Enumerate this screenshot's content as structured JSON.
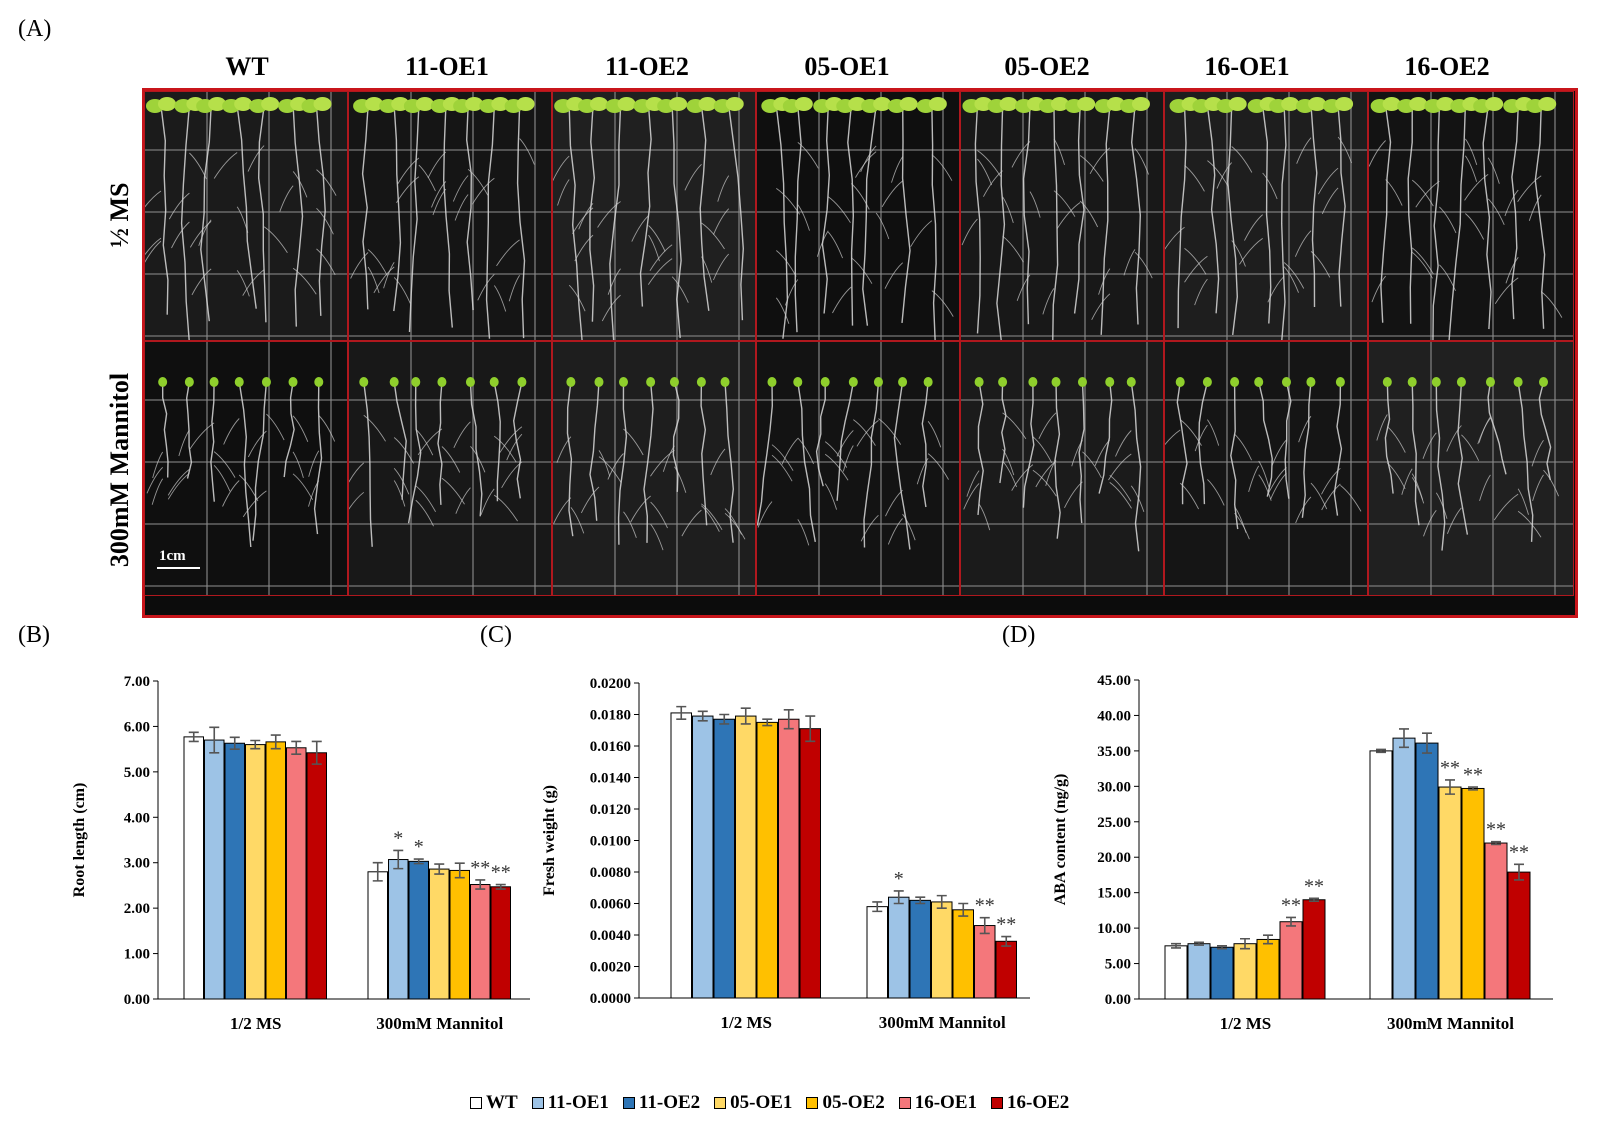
{
  "panel_labels": {
    "a": "(A)",
    "b": "(B)",
    "c": "(C)",
    "d": "(D)"
  },
  "photo": {
    "columns": [
      "WT",
      "11-OE1",
      "11-OE2",
      "05-OE1",
      "05-OE2",
      "16-OE1",
      "16-OE2"
    ],
    "rows": [
      "½ MS",
      "300mM Mannitol"
    ],
    "scale_bar": "1cm"
  },
  "legend": [
    {
      "name": "WT",
      "color": "#ffffff"
    },
    {
      "name": "11-OE1",
      "color": "#9dc3e6"
    },
    {
      "name": "11-OE2",
      "color": "#2e75b6"
    },
    {
      "name": "05-OE1",
      "color": "#ffd966"
    },
    {
      "name": "05-OE2",
      "color": "#ffc000"
    },
    {
      "name": "16-OE1",
      "color": "#f4777b"
    },
    {
      "name": "16-OE2",
      "color": "#c00000"
    }
  ],
  "chart_data": [
    {
      "id": "root-length",
      "type": "bar",
      "ylabel": "Root length (cm)",
      "categories": [
        "1/2 MS",
        "300mM Mannitol"
      ],
      "ylim": [
        0,
        7
      ],
      "yticks": [
        "0.00",
        "1.00",
        "2.00",
        "3.00",
        "4.00",
        "5.00",
        "6.00",
        "7.00"
      ],
      "series": [
        {
          "name": "WT",
          "values": [
            5.77,
            2.8
          ],
          "errors": [
            0.1,
            0.2
          ],
          "marks": [
            "",
            ""
          ]
        },
        {
          "name": "11-OE1",
          "values": [
            5.7,
            3.07
          ],
          "errors": [
            0.28,
            0.2
          ],
          "marks": [
            "",
            "*"
          ]
        },
        {
          "name": "11-OE2",
          "values": [
            5.63,
            3.03
          ],
          "errors": [
            0.13,
            0.05
          ],
          "marks": [
            "",
            "*"
          ]
        },
        {
          "name": "05-OE1",
          "values": [
            5.6,
            2.86
          ],
          "errors": [
            0.09,
            0.11
          ],
          "marks": [
            "",
            ""
          ]
        },
        {
          "name": "05-OE2",
          "values": [
            5.66,
            2.83
          ],
          "errors": [
            0.15,
            0.16
          ],
          "marks": [
            "",
            ""
          ]
        },
        {
          "name": "16-OE1",
          "values": [
            5.53,
            2.52
          ],
          "errors": [
            0.14,
            0.1
          ],
          "marks": [
            "",
            "**"
          ]
        },
        {
          "name": "16-OE2",
          "values": [
            5.42,
            2.47
          ],
          "errors": [
            0.25,
            0.05
          ],
          "marks": [
            "",
            "**"
          ]
        }
      ]
    },
    {
      "id": "fresh-weight",
      "type": "bar",
      "ylabel": "Fresh weight (g)",
      "categories": [
        "1/2 MS",
        "300mM Mannitol"
      ],
      "ylim": [
        0,
        0.02
      ],
      "yticks": [
        "0.0000",
        "0.0020",
        "0.0040",
        "0.0060",
        "0.0080",
        "0.0100",
        "0.0120",
        "0.0140",
        "0.0160",
        "0.0180",
        "0.0200"
      ],
      "series": [
        {
          "name": "WT",
          "values": [
            0.0181,
            0.0058
          ],
          "errors": [
            0.0004,
            0.0003
          ],
          "marks": [
            "",
            ""
          ]
        },
        {
          "name": "11-OE1",
          "values": [
            0.0179,
            0.0064
          ],
          "errors": [
            0.0003,
            0.0004
          ],
          "marks": [
            "",
            "*"
          ]
        },
        {
          "name": "11-OE2",
          "values": [
            0.0177,
            0.0062
          ],
          "errors": [
            0.0003,
            0.0002
          ],
          "marks": [
            "",
            ""
          ]
        },
        {
          "name": "05-OE1",
          "values": [
            0.0179,
            0.0061
          ],
          "errors": [
            0.0005,
            0.0004
          ],
          "marks": [
            "",
            ""
          ]
        },
        {
          "name": "05-OE2",
          "values": [
            0.0175,
            0.0056
          ],
          "errors": [
            0.0002,
            0.0004
          ],
          "marks": [
            "",
            ""
          ]
        },
        {
          "name": "16-OE1",
          "values": [
            0.0177,
            0.0046
          ],
          "errors": [
            0.0006,
            0.0005
          ],
          "marks": [
            "",
            "**"
          ]
        },
        {
          "name": "16-OE2",
          "values": [
            0.0171,
            0.0036
          ],
          "errors": [
            0.0008,
            0.0003
          ],
          "marks": [
            "",
            "**"
          ]
        }
      ]
    },
    {
      "id": "aba-content",
      "type": "bar",
      "ylabel": "ABA content (ng/g)",
      "categories": [
        "1/2 MS",
        "300mM Mannitol"
      ],
      "ylim": [
        0,
        45
      ],
      "yticks": [
        "0.00",
        "5.00",
        "10.00",
        "15.00",
        "20.00",
        "25.00",
        "30.00",
        "35.00",
        "40.00",
        "45.00"
      ],
      "series": [
        {
          "name": "WT",
          "values": [
            7.5,
            35.0
          ],
          "errors": [
            0.3,
            0.2
          ],
          "marks": [
            "",
            ""
          ]
        },
        {
          "name": "11-OE1",
          "values": [
            7.8,
            36.8
          ],
          "errors": [
            0.2,
            1.3
          ],
          "marks": [
            "",
            ""
          ]
        },
        {
          "name": "11-OE2",
          "values": [
            7.3,
            36.1
          ],
          "errors": [
            0.2,
            1.4
          ],
          "marks": [
            "",
            ""
          ]
        },
        {
          "name": "05-OE1",
          "values": [
            7.8,
            29.9
          ],
          "errors": [
            0.7,
            1.0
          ],
          "marks": [
            "",
            "**"
          ]
        },
        {
          "name": "05-OE2",
          "values": [
            8.4,
            29.7
          ],
          "errors": [
            0.6,
            0.2
          ],
          "marks": [
            "",
            "**"
          ]
        },
        {
          "name": "16-OE1",
          "values": [
            10.9,
            22.0
          ],
          "errors": [
            0.6,
            0.2
          ],
          "marks": [
            "**",
            "**"
          ]
        },
        {
          "name": "16-OE2",
          "values": [
            14.0,
            17.9
          ],
          "errors": [
            0.2,
            1.1
          ],
          "marks": [
            "**",
            "**"
          ]
        }
      ]
    }
  ]
}
